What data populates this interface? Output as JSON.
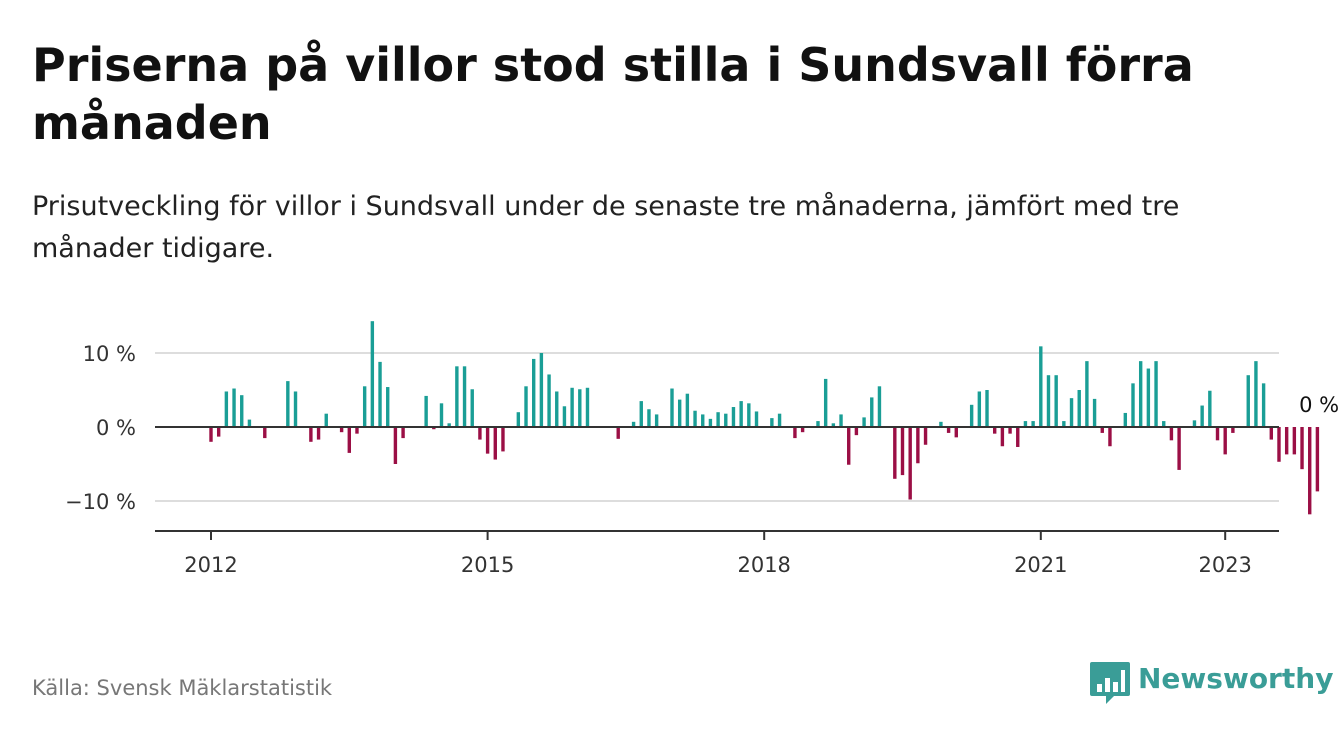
{
  "title": "Priserna på villor stod stilla i Sundsvall förra månaden",
  "subtitle": "Prisutveckling för villor i Sundsvall under de senaste tre månaderna, jämfört med tre månader tidigare.",
  "source": "Källa: Svensk Mäklarstatistik",
  "brand": {
    "name": "Newsworthy",
    "icon": "newsworthy-logo-icon"
  },
  "colors": {
    "positive": "#1a9e96",
    "negative": "#9b0f45",
    "axis": "#333333",
    "grid": "#dddddd"
  },
  "chart_data": {
    "type": "bar",
    "x_start": "2012-01",
    "x_end": "2022-12",
    "y_ticks": [
      {
        "value": 10,
        "label": "10 %"
      },
      {
        "value": 0,
        "label": "0 %"
      },
      {
        "value": -10,
        "label": "−10 %"
      }
    ],
    "x_ticks": [
      {
        "year": 2012,
        "label": "2012"
      },
      {
        "year": 2015,
        "label": "2015"
      },
      {
        "year": 2018,
        "label": "2018"
      },
      {
        "year": 2021,
        "label": "2021"
      },
      {
        "year": 2023,
        "label": "2023"
      }
    ],
    "ylim": [
      -14,
      14
    ],
    "grid": true,
    "annotation": {
      "label": "0 %"
    },
    "values": [
      -2,
      -1.3,
      4.8,
      5.2,
      4.3,
      1,
      0,
      -1.5,
      0,
      0,
      6.2,
      4.8,
      0,
      -2,
      -1.7,
      1.8,
      0,
      -0.7,
      -3.5,
      -0.9,
      5.5,
      14.3,
      8.8,
      5.4,
      -5,
      -1.5,
      0,
      0,
      4.2,
      -0.3,
      3.2,
      0.5,
      8.2,
      8.2,
      5.1,
      -1.7,
      -3.6,
      -4.4,
      -3.3,
      0,
      2,
      5.5,
      9.2,
      10,
      7.1,
      4.8,
      2.8,
      5.3,
      5.1,
      5.3,
      0,
      0,
      0,
      -1.6,
      0,
      0.7,
      3.5,
      2.4,
      1.7,
      0,
      5.2,
      3.7,
      4.5,
      2.2,
      1.7,
      1.1,
      2,
      1.8,
      2.7,
      3.5,
      3.2,
      2.1,
      0,
      1.2,
      1.8,
      0,
      -1.5,
      -0.7,
      0,
      0.8,
      6.5,
      0.5,
      1.7,
      -5.1,
      -1.1,
      1.3,
      4,
      5.5,
      0,
      -7,
      -6.5,
      -9.8,
      -4.9,
      -2.4,
      0,
      0.7,
      -0.8,
      -1.4,
      0,
      3,
      4.8,
      5,
      -0.9,
      -2.6,
      -0.9,
      -2.7,
      0.8,
      0.8,
      10.9,
      7,
      7,
      0.8,
      3.9,
      5,
      8.9,
      3.8,
      -0.8,
      -2.6,
      0,
      1.9,
      5.9,
      8.9,
      7.9,
      8.9,
      0.8,
      -1.8,
      -5.8,
      0,
      0.9,
      2.9,
      4.9,
      -1.8,
      -3.7,
      -0.8,
      0,
      7,
      8.9,
      5.9,
      -1.7,
      -4.7,
      -3.7,
      -3.7,
      -5.7,
      -11.8,
      -8.7,
      0
    ]
  }
}
